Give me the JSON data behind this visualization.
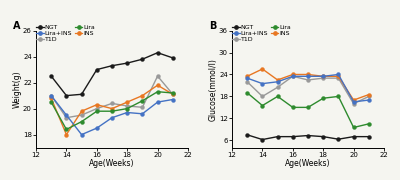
{
  "ages": [
    13,
    14,
    15,
    16,
    17,
    18,
    19,
    20,
    21
  ],
  "weight": {
    "NGT": [
      22.5,
      21.0,
      21.1,
      23.0,
      23.3,
      23.5,
      23.8,
      24.3,
      23.9
    ],
    "T1D": [
      21.0,
      19.3,
      19.5,
      20.0,
      20.4,
      20.2,
      20.1,
      22.5,
      21.1
    ],
    "INS": [
      20.8,
      18.0,
      19.8,
      20.3,
      20.0,
      20.5,
      21.0,
      21.8,
      21.1
    ],
    "LiraINS": [
      21.0,
      19.5,
      18.0,
      18.5,
      19.3,
      19.7,
      19.6,
      20.5,
      20.7
    ],
    "Lira": [
      20.5,
      18.4,
      19.0,
      19.8,
      19.8,
      20.0,
      20.6,
      21.3,
      21.2
    ]
  },
  "glucose": {
    "NGT": [
      7.5,
      6.2,
      7.0,
      7.0,
      7.3,
      7.0,
      6.3,
      7.0,
      7.0
    ],
    "T1D": [
      22.0,
      18.0,
      20.5,
      23.5,
      22.5,
      23.0,
      23.0,
      16.0,
      18.0
    ],
    "INS": [
      23.5,
      25.5,
      22.5,
      24.0,
      24.0,
      23.5,
      23.5,
      17.0,
      18.5
    ],
    "LiraINS": [
      23.0,
      21.5,
      22.0,
      23.5,
      23.5,
      23.5,
      24.0,
      16.5,
      17.0
    ],
    "Lira": [
      19.0,
      15.5,
      18.0,
      15.0,
      15.0,
      17.5,
      18.0,
      9.5,
      10.5
    ]
  },
  "colors": {
    "NGT": "#1a1a1a",
    "T1D": "#999999",
    "INS": "#E87722",
    "LiraINS": "#4472C4",
    "Lira": "#2E8B2E"
  },
  "legend_labels": {
    "NGT": "NGT",
    "T1D": "T1D",
    "INS": "INS",
    "LiraINS": "Lira+INS",
    "Lira": "Lira"
  },
  "xlim": [
    12,
    22
  ],
  "xticks": [
    12,
    14,
    16,
    18,
    20,
    22
  ],
  "weight_ylim": [
    17.0,
    26.0
  ],
  "weight_yticks": [
    18,
    20,
    22,
    24,
    26
  ],
  "glucose_ylim": [
    4.0,
    36.0
  ],
  "glucose_yticks": [
    6,
    12,
    18,
    24,
    30,
    36
  ],
  "xlabel": "Age(Weeks)",
  "ylabel_a": "Weight(g)",
  "ylabel_b": "Glucose(mmol/l)",
  "panel_a": "A",
  "panel_b": "B",
  "bg_color": "#f5f5f0",
  "linewidth": 1.0,
  "markersize": 2.8,
  "fontsize_label": 5.5,
  "fontsize_tick": 5.0,
  "fontsize_legend": 4.5,
  "fontsize_panel": 7
}
